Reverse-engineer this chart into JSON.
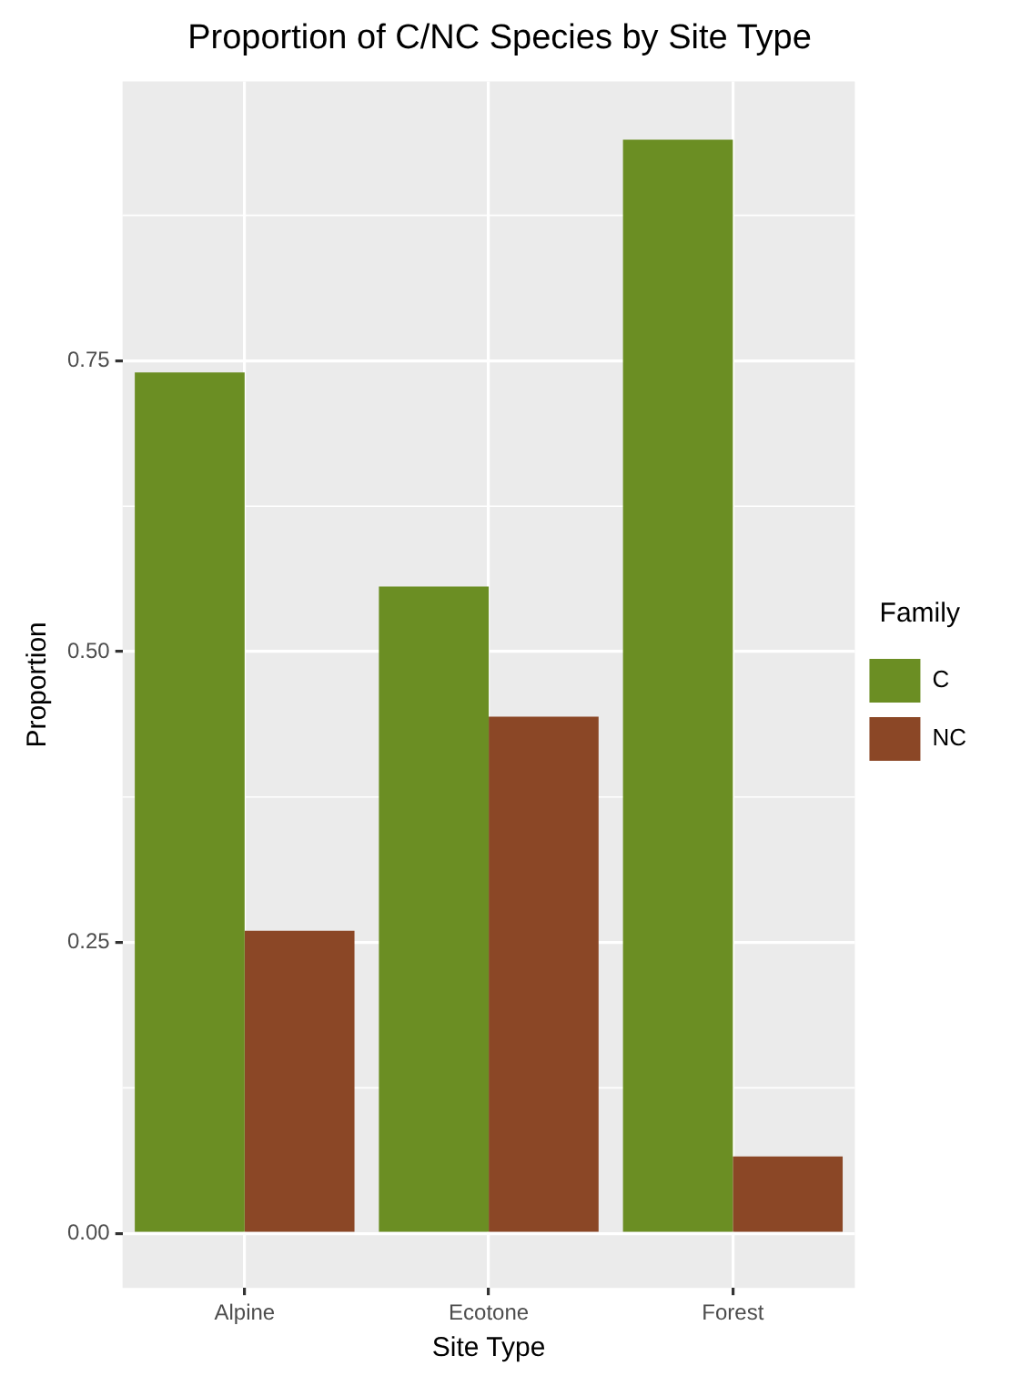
{
  "chart_data": {
    "type": "bar",
    "title": "Proportion of C/NC Species by Site Type",
    "xlabel": "Site Type",
    "ylabel": "Proportion",
    "legend_title": "Family",
    "categories": [
      "Alpine",
      "Ecotone",
      "Forest"
    ],
    "series": [
      {
        "name": "C",
        "color": "#6b8e23",
        "values": [
          0.74,
          0.556,
          0.94
        ]
      },
      {
        "name": "NC",
        "color": "#8b4726",
        "values": [
          0.26,
          0.444,
          0.066
        ]
      }
    ],
    "ylim": [
      -0.047,
      0.99
    ],
    "yticks": [
      {
        "value": 0,
        "label": "0.00"
      },
      {
        "value": 0.25,
        "label": "0.25"
      },
      {
        "value": 0.5,
        "label": "0.50"
      },
      {
        "value": 0.75,
        "label": "0.75"
      }
    ],
    "grid": true,
    "legend": "right"
  }
}
